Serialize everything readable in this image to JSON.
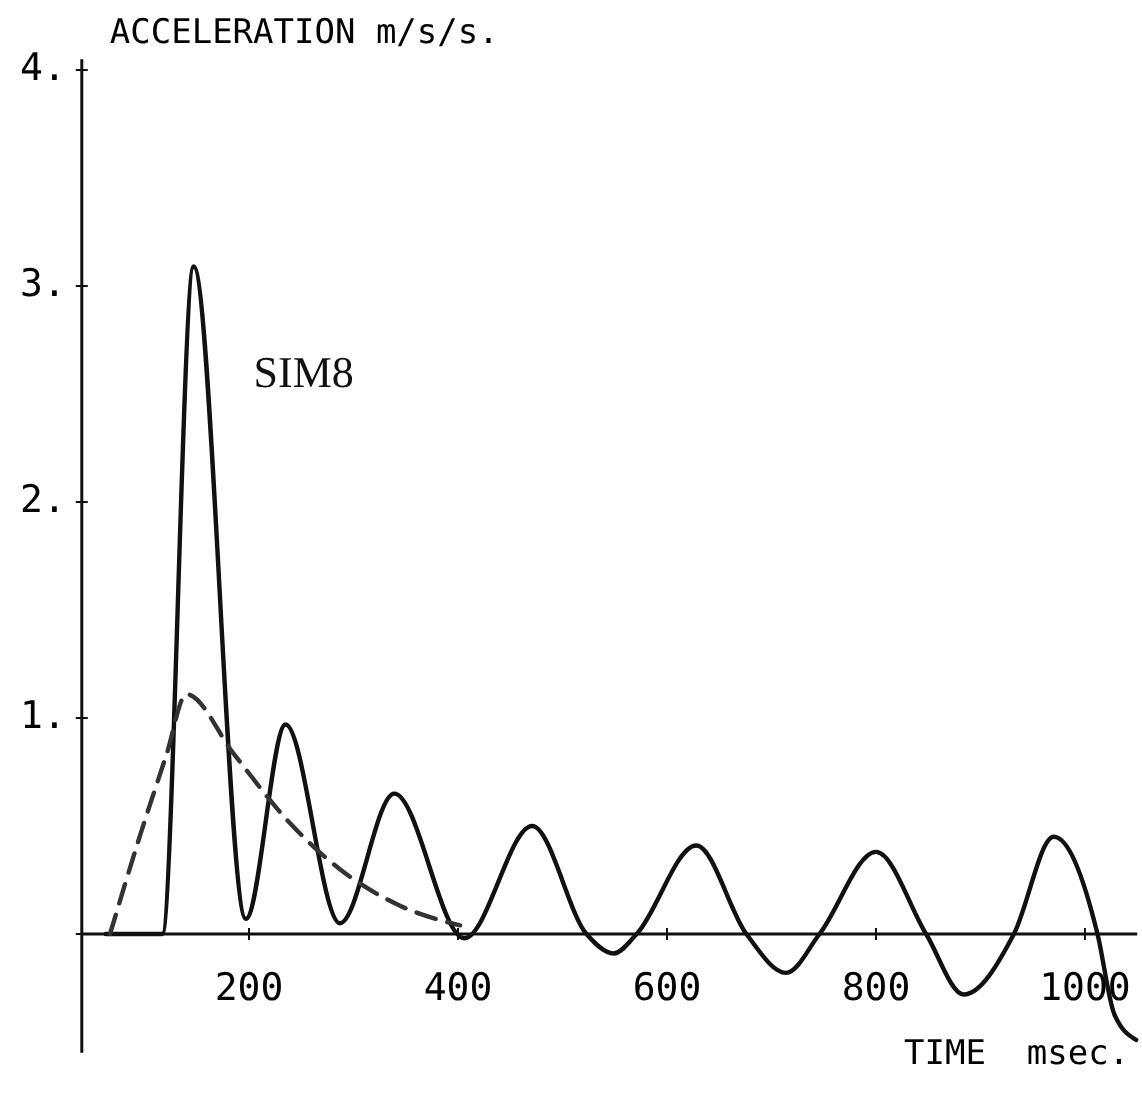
{
  "chart_data": {
    "type": "line",
    "xlabel": "TIME  msec.",
    "ylabel": "ACCELERATION m/s/s.",
    "xlim": [
      40,
      1050
    ],
    "ylim": [
      -0.55,
      4.05
    ],
    "xticks": [
      200,
      400,
      600,
      800,
      1000
    ],
    "yticks": [
      {
        "value": 0,
        "label": null
      },
      {
        "value": 1,
        "label": "1."
      },
      {
        "value": 2,
        "label": "2."
      },
      {
        "value": 3,
        "label": "3."
      },
      {
        "value": 4,
        "label": "4."
      }
    ],
    "grid": false,
    "marker": "none",
    "series": [
      {
        "name": "SIM8",
        "color": "#111111",
        "line_style": "solid",
        "x": [
          63,
          117,
          147,
          197,
          235,
          287,
          339,
          406,
          471,
          523,
          549,
          571,
          628,
          676,
          714,
          746,
          800,
          848,
          884,
          932,
          970,
          1012,
          1028,
          1049
        ],
        "values": [
          0,
          0,
          3.09,
          0.07,
          0.97,
          0.05,
          0.65,
          -0.02,
          0.5,
          0,
          -0.09,
          0,
          0.41,
          0,
          -0.18,
          0,
          0.38,
          0,
          -0.28,
          0,
          0.45,
          0,
          -0.37,
          -0.49
        ]
      },
      {
        "color": "#333333",
        "line_style": "dashed",
        "x": [
          67,
          96,
          121,
          140,
          186,
          236,
          287,
          345,
          402
        ],
        "values": [
          0,
          0.46,
          0.83,
          1.11,
          0.83,
          0.53,
          0.3,
          0.13,
          0.04
        ]
      }
    ]
  }
}
